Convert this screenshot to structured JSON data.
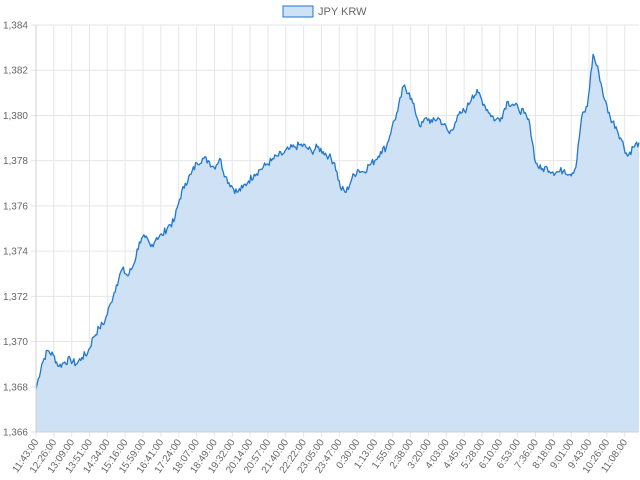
{
  "chart_data": {
    "type": "area",
    "legend": {
      "position": "top",
      "entries": [
        "JPY KRW"
      ]
    },
    "series": [
      {
        "name": "JPY KRW",
        "color": "#1f77d0",
        "fill": "#cfe1f5"
      }
    ],
    "yticks": [
      "1,366",
      "1,368",
      "1,370",
      "1,372",
      "1,374",
      "1,376",
      "1,378",
      "1,380",
      "1,382",
      "1,384"
    ],
    "ylim": [
      1366,
      1384
    ],
    "xticks": [
      "11:43:00",
      "12:26:00",
      "13:09:00",
      "13:51:00",
      "14:34:00",
      "15:16:00",
      "15:59:00",
      "16:41:00",
      "17:24:00",
      "18:07:00",
      "18:49:00",
      "19:32:00",
      "20:14:00",
      "20:57:00",
      "21:40:00",
      "22:22:00",
      "23:05:00",
      "23:47:00",
      "0:30:00",
      "1:13:00",
      "1:55:00",
      "2:38:00",
      "3:20:00",
      "4:03:00",
      "4:45:00",
      "5:28:00",
      "6:10:00",
      "6:53:00",
      "7:36:00",
      "8:18:00",
      "9:01:00",
      "9:43:00",
      "10:26:00",
      "11:08:00"
    ],
    "grid": true,
    "y": [
      1367.9,
      1369.0,
      1369.6,
      1369.4,
      1368.9,
      1369.1,
      1369.2,
      1369.0,
      1369.3,
      1369.5,
      1370.2,
      1370.6,
      1370.9,
      1371.7,
      1372.5,
      1373.2,
      1372.9,
      1373.4,
      1374.4,
      1374.6,
      1374.2,
      1374.6,
      1374.7,
      1375.1,
      1375.3,
      1376.3,
      1377.0,
      1377.4,
      1377.9,
      1378.1,
      1378.0,
      1377.7,
      1378.1,
      1377.3,
      1376.9,
      1376.6,
      1376.8,
      1377.1,
      1377.4,
      1377.6,
      1377.8,
      1378.0,
      1378.2,
      1378.3,
      1378.5,
      1378.6,
      1378.7,
      1378.6,
      1378.4,
      1378.6,
      1378.4,
      1378.2,
      1377.9,
      1376.8,
      1376.6,
      1377.2,
      1377.6,
      1377.5,
      1377.8,
      1378.0,
      1378.4,
      1378.6,
      1379.5,
      1380.2,
      1381.3,
      1381.0,
      1380.2,
      1379.5,
      1379.9,
      1379.7,
      1379.9,
      1379.6,
      1379.2,
      1379.7,
      1380.1,
      1380.3,
      1380.9,
      1381.0,
      1380.5,
      1380.1,
      1379.8,
      1379.9,
      1380.6,
      1380.5,
      1380.3,
      1380.1,
      1379.6,
      1377.9,
      1377.6,
      1377.7,
      1377.5,
      1377.5,
      1377.6,
      1377.4,
      1377.7,
      1379.9,
      1380.4,
      1382.7,
      1381.9,
      1380.7,
      1379.9,
      1379.5,
      1378.9,
      1378.2,
      1378.6,
      1378.8
    ]
  }
}
